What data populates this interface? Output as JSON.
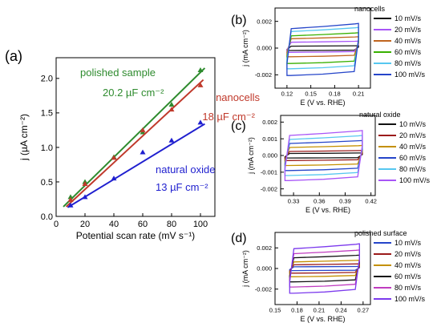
{
  "chart_data": [
    {
      "panel": "(a)",
      "type": "scatter",
      "xlabel": "Potential scan rate (mV s⁻¹)",
      "ylabel": "j (µA cm⁻²)",
      "xlim": [
        0,
        110
      ],
      "ylim": [
        0,
        2.3
      ],
      "xticks": [
        0,
        20,
        40,
        60,
        80,
        100
      ],
      "yticks": [
        0.0,
        0.5,
        1.0,
        1.5,
        2.0
      ],
      "ytick_labels": [
        "0.0",
        "0.5",
        "1.0",
        "1.5",
        "2.0"
      ],
      "grid": false,
      "series": [
        {
          "name": "polished sample",
          "capacitance": "20.2 µF cm⁻²",
          "color": "#2e8b2e",
          "marker": "triangle",
          "x": [
            10,
            20,
            40,
            60,
            80,
            100
          ],
          "y": [
            0.28,
            0.5,
            0.86,
            1.22,
            1.62,
            2.12
          ],
          "fit": [
            [
              5,
              0.14
            ],
            [
              103,
              2.15
            ]
          ]
        },
        {
          "name": "nanocells",
          "capacitance": "18 µF cm⁻²",
          "color": "#c0392b",
          "marker": "triangle",
          "x": [
            10,
            20,
            40,
            60,
            80,
            100
          ],
          "y": [
            0.24,
            0.47,
            0.85,
            1.25,
            1.55,
            1.9
          ],
          "fit": [
            [
              7,
              0.14
            ],
            [
              102,
              1.98
            ]
          ]
        },
        {
          "name": "natural oxide",
          "capacitance": "13 µF cm⁻²",
          "color": "#1f1fcf",
          "marker": "triangle",
          "x": [
            10,
            20,
            40,
            60,
            80,
            100
          ],
          "y": [
            0.16,
            0.28,
            0.55,
            0.93,
            1.1,
            1.36
          ],
          "fit": [
            [
              8,
              0.13
            ],
            [
              103,
              1.34
            ]
          ]
        }
      ]
    },
    {
      "panel": "(b)",
      "type": "line",
      "legend_title": "nanocells",
      "xlabel": "E (V  vs. RHE)",
      "ylabel": "j (mA cm⁻²)",
      "xlim": [
        0.105,
        0.225
      ],
      "ylim": [
        -0.003,
        0.003
      ],
      "xticks": [
        0.12,
        0.15,
        0.18,
        0.21
      ],
      "xtick_labels": [
        "0.12",
        "0.15",
        "0.18",
        "0.21"
      ],
      "yticks": [
        -0.002,
        0.0,
        0.002
      ],
      "ytick_labels": [
        "-0.002",
        "0.000",
        "0.002"
      ],
      "legend": "right",
      "cv_x": [
        0.12,
        0.21
      ],
      "series": [
        {
          "name": "10 mV/s",
          "color": "#111111",
          "half": 0.00018,
          "offset": 0.0
        },
        {
          "name": "20 mV/s",
          "color": "#a855f7",
          "half": 0.00042,
          "offset": 0.0001
        },
        {
          "name": "40 mV/s",
          "color": "#c0651f",
          "half": 0.00075,
          "offset": 0.0001
        },
        {
          "name": "60 mV/s",
          "color": "#38b000",
          "half": 0.00115,
          "offset": 0.0
        },
        {
          "name": "80 mV/s",
          "color": "#56c7f0",
          "half": 0.00155,
          "offset": 0.0
        },
        {
          "name": "100 mV/s",
          "color": "#2545c9",
          "half": 0.00195,
          "offset": -0.0001
        }
      ]
    },
    {
      "panel": "(c)",
      "type": "line",
      "legend_title": "natural oxide",
      "xlabel": "E (V  vs. RHE)",
      "ylabel": "j (mA cm⁻²)",
      "xlim": [
        0.315,
        0.425
      ],
      "ylim": [
        -0.0024,
        0.0024
      ],
      "xticks": [
        0.33,
        0.36,
        0.39,
        0.42
      ],
      "xtick_labels": [
        "0.33",
        "0.36",
        "0.39",
        "0.42"
      ],
      "yticks": [
        -0.002,
        -0.001,
        0.0,
        0.001,
        0.002
      ],
      "ytick_labels": [
        "-0.002",
        "-0.001",
        "0.000",
        "0.001",
        "0.002"
      ],
      "legend": "right",
      "cv_x": [
        0.32,
        0.41
      ],
      "series": [
        {
          "name": "10 mV/s",
          "color": "#111111",
          "half": 0.00015,
          "offset": 0.0
        },
        {
          "name": "20 mV/s",
          "color": "#9b1b1b",
          "half": 0.0003,
          "offset": 0.0
        },
        {
          "name": "40 mV/s",
          "color": "#c49000",
          "half": 0.0006,
          "offset": 0.0
        },
        {
          "name": "60 mV/s",
          "color": "#2545c9",
          "half": 0.0009,
          "offset": 0.0
        },
        {
          "name": "80 mV/s",
          "color": "#56c7f0",
          "half": 0.0012,
          "offset": 0.0
        },
        {
          "name": "100 mV/s",
          "color": "#a855f7",
          "half": 0.0015,
          "offset": 0.0
        }
      ]
    },
    {
      "panel": "(d)",
      "type": "line",
      "legend_title": "polished surface",
      "xlabel": "E (V  vs. RHE)",
      "ylabel": "j (mA cm⁻²)",
      "xlim": [
        0.15,
        0.28
      ],
      "ylim": [
        -0.0035,
        0.0035
      ],
      "xticks": [
        0.15,
        0.18,
        0.21,
        0.24,
        0.27
      ],
      "xtick_labels": [
        "0.15",
        "0.18",
        "0.21",
        "0.24",
        "0.27"
      ],
      "yticks": [
        -0.002,
        0.0,
        0.002
      ],
      "ytick_labels": [
        "-0.002",
        "0.000",
        "0.002"
      ],
      "legend": "right",
      "cv_x": [
        0.17,
        0.265
      ],
      "series": [
        {
          "name": "10 mV/s",
          "color": "#2545c9",
          "half": 0.0002,
          "offset": 0.0
        },
        {
          "name": "20 mV/s",
          "color": "#9b1b1b",
          "half": 0.00045,
          "offset": 0.0
        },
        {
          "name": "40 mV/s",
          "color": "#c49000",
          "half": 0.0008,
          "offset": 0.0
        },
        {
          "name": "60 mV/s",
          "color": "#111111",
          "half": 0.0013,
          "offset": 0.0
        },
        {
          "name": "80 mV/s",
          "color": "#c03cc0",
          "half": 0.0018,
          "offset": 0.0
        },
        {
          "name": "100 mV/s",
          "color": "#7c3aed",
          "half": 0.0024,
          "offset": 0.0
        }
      ]
    }
  ]
}
